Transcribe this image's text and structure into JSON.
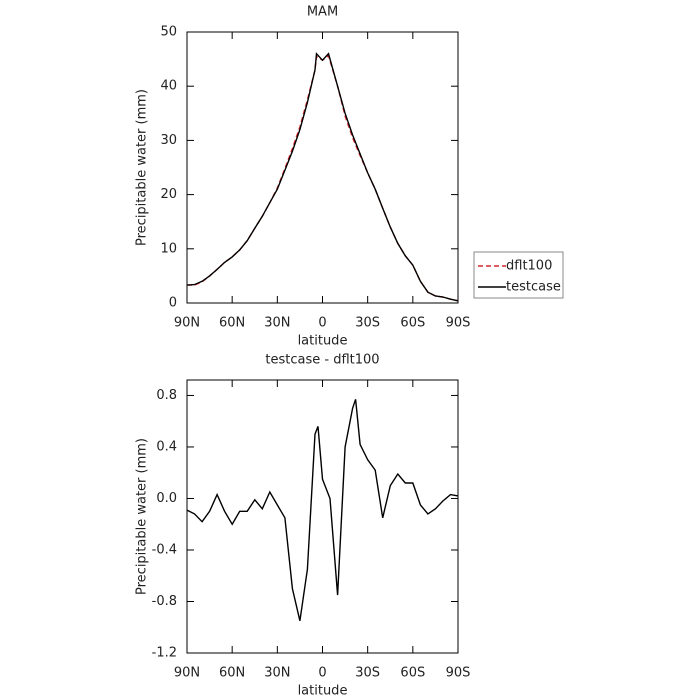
{
  "chart_data": [
    {
      "type": "line",
      "title": "MAM",
      "xlabel": "latitude",
      "ylabel": "Precipitable water (mm)",
      "x": [
        90,
        85,
        80,
        75,
        70,
        65,
        60,
        55,
        50,
        45,
        40,
        35,
        30,
        25,
        20,
        15,
        10,
        5,
        4,
        0,
        -4,
        -10,
        -15,
        -20,
        -25,
        -30,
        -35,
        -40,
        -45,
        -50,
        -55,
        -60,
        -65,
        -70,
        -75,
        -80,
        -85,
        -90
      ],
      "xlim": [
        90,
        -90
      ],
      "xticks": [
        {
          "value": 90,
          "label": "90N"
        },
        {
          "value": 60,
          "label": "60N"
        },
        {
          "value": 30,
          "label": "30N"
        },
        0,
        {
          "value": -30,
          "label": "30S"
        },
        {
          "value": -60,
          "label": "60S"
        },
        {
          "value": -90,
          "label": "90S"
        }
      ],
      "ylim": [
        0,
        50
      ],
      "yticks": [
        0,
        10,
        20,
        30,
        40,
        50
      ],
      "legend": "right",
      "series": [
        {
          "name": "dflt100",
          "color": "#d62728",
          "line_style": "dashed",
          "values": [
            3.3,
            3.3,
            3.9,
            5.0,
            6.2,
            7.5,
            8.5,
            9.8,
            11.5,
            13.8,
            16,
            18.5,
            21.2,
            24.8,
            28.5,
            32.5,
            37.5,
            43,
            45.5,
            44.8,
            45.6,
            40,
            34.5,
            30.5,
            27.2,
            24,
            21,
            17.5,
            14,
            11,
            8.7,
            7,
            4,
            2,
            1.3,
            1.1,
            0.7,
            0.4
          ]
        },
        {
          "name": "testcase",
          "color": "#000000",
          "line_style": "solid",
          "values": [
            3.3,
            3.4,
            4.0,
            5.0,
            6.2,
            7.5,
            8.5,
            9.8,
            11.5,
            13.8,
            16,
            18.5,
            21,
            24.5,
            28,
            32,
            37,
            43,
            46,
            44.8,
            46,
            40,
            35,
            31,
            27.5,
            24,
            21,
            17.5,
            14,
            11,
            8.7,
            7,
            4,
            2,
            1.3,
            1.1,
            0.7,
            0.4
          ]
        }
      ]
    },
    {
      "type": "line",
      "title": "testcase - dflt100",
      "xlabel": "latitude",
      "ylabel": "Precipitable water (mm)",
      "x": [
        90,
        85,
        80,
        75,
        70,
        65,
        60,
        55,
        50,
        45,
        40,
        35,
        30,
        25,
        20,
        15,
        10,
        5,
        3,
        0,
        -5,
        -10,
        -15,
        -20,
        -22,
        -25,
        -30,
        -35,
        -40,
        -45,
        -50,
        -55,
        -60,
        -65,
        -70,
        -75,
        -80,
        -85,
        -90
      ],
      "xlim": [
        90,
        -90
      ],
      "xticks": [
        {
          "value": 90,
          "label": "90N"
        },
        {
          "value": 60,
          "label": "60N"
        },
        {
          "value": 30,
          "label": "30N"
        },
        0,
        {
          "value": -30,
          "label": "30S"
        },
        {
          "value": -60,
          "label": "60S"
        },
        {
          "value": -90,
          "label": "90S"
        }
      ],
      "ylim": [
        -1.2,
        0.92
      ],
      "yticks": [
        -1.2,
        -0.8,
        -0.4,
        {
          "value": 0,
          "label": "0.0"
        },
        0.4,
        0.8
      ],
      "series": [
        {
          "name": "testcase",
          "color": "#000000",
          "line_style": "solid",
          "values": [
            -0.09,
            -0.12,
            -0.18,
            -0.1,
            0.03,
            -0.1,
            -0.2,
            -0.1,
            -0.1,
            -0.01,
            -0.08,
            0.05,
            -0.05,
            -0.15,
            -0.7,
            -0.95,
            -0.55,
            0.5,
            0.56,
            0.15,
            0.0,
            -0.75,
            0.4,
            0.7,
            0.77,
            0.42,
            0.3,
            0.22,
            -0.15,
            0.1,
            0.19,
            0.12,
            0.12,
            -0.05,
            -0.12,
            -0.08,
            -0.02,
            0.03,
            0.02
          ]
        }
      ]
    }
  ]
}
